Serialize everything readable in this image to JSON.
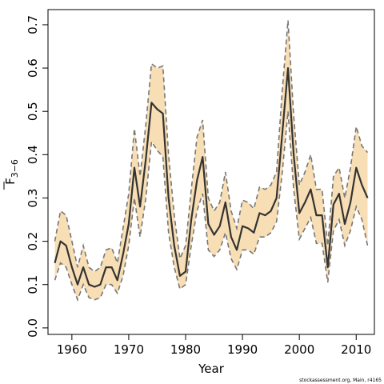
{
  "chart_data": {
    "type": "line",
    "xlabel": "Year",
    "ylabel": "F",
    "ylabel_subscript": "3−6",
    "xlim": [
      1955.8,
      2013.2
    ],
    "ylim": [
      -0.015,
      0.735
    ],
    "x_ticks": [
      1960,
      1970,
      1980,
      1990,
      2000,
      2010
    ],
    "y_ticks": [
      0.0,
      0.1,
      0.2,
      0.3,
      0.4,
      0.5,
      0.6,
      0.7
    ],
    "colors": {
      "band": "#f8deb4",
      "bounds": "#777777",
      "estimate": "#333333",
      "axes": "#000000"
    },
    "credit": "stockassessment.org, Main, r4165",
    "series": [
      {
        "role": "estimate",
        "x": [
          1957,
          1958,
          1959,
          1960,
          1961,
          1962,
          1963,
          1964,
          1965,
          1966,
          1967,
          1968,
          1969,
          1970,
          1971,
          1972,
          1973,
          1974,
          1975,
          1976,
          1977,
          1978,
          1979,
          1980,
          1981,
          1982,
          1983,
          1984,
          1985,
          1986,
          1987,
          1988,
          1989,
          1990,
          1991,
          1992,
          1993,
          1994,
          1995,
          1996,
          1997,
          1998,
          1999,
          2000,
          2001,
          2002,
          2003,
          2004,
          2005,
          2006,
          2007,
          2008,
          2009,
          2010,
          2011,
          2012
        ],
        "y": [
          0.15,
          0.2,
          0.19,
          0.14,
          0.1,
          0.14,
          0.1,
          0.095,
          0.1,
          0.14,
          0.14,
          0.11,
          0.17,
          0.24,
          0.37,
          0.28,
          0.39,
          0.52,
          0.505,
          0.495,
          0.3,
          0.19,
          0.12,
          0.13,
          0.25,
          0.34,
          0.395,
          0.24,
          0.215,
          0.235,
          0.29,
          0.21,
          0.18,
          0.235,
          0.23,
          0.22,
          0.265,
          0.26,
          0.27,
          0.3,
          0.45,
          0.6,
          0.4,
          0.265,
          0.29,
          0.32,
          0.26,
          0.26,
          0.14,
          0.285,
          0.31,
          0.24,
          0.29,
          0.37,
          0.33,
          0.3
        ]
      },
      {
        "role": "upper",
        "x": [
          1957,
          1958,
          1959,
          1960,
          1961,
          1962,
          1963,
          1964,
          1965,
          1966,
          1967,
          1968,
          1969,
          1970,
          1971,
          1972,
          1973,
          1974,
          1975,
          1976,
          1977,
          1978,
          1979,
          1980,
          1981,
          1982,
          1983,
          1984,
          1985,
          1986,
          1987,
          1988,
          1989,
          1990,
          1991,
          1992,
          1993,
          1994,
          1995,
          1996,
          1997,
          1998,
          1999,
          2000,
          2001,
          2002,
          2003,
          2004,
          2005,
          2006,
          2007,
          2008,
          2009,
          2010,
          2011,
          2012
        ],
        "y": [
          0.2,
          0.27,
          0.26,
          0.2,
          0.14,
          0.19,
          0.14,
          0.13,
          0.14,
          0.18,
          0.185,
          0.15,
          0.23,
          0.31,
          0.46,
          0.35,
          0.47,
          0.61,
          0.6,
          0.605,
          0.4,
          0.26,
          0.16,
          0.19,
          0.32,
          0.44,
          0.48,
          0.3,
          0.27,
          0.29,
          0.36,
          0.27,
          0.23,
          0.295,
          0.29,
          0.275,
          0.325,
          0.32,
          0.33,
          0.36,
          0.55,
          0.71,
          0.49,
          0.33,
          0.36,
          0.4,
          0.32,
          0.32,
          0.19,
          0.35,
          0.37,
          0.3,
          0.37,
          0.465,
          0.42,
          0.405
        ]
      },
      {
        "role": "lower",
        "x": [
          1957,
          1958,
          1959,
          1960,
          1961,
          1962,
          1963,
          1964,
          1965,
          1966,
          1967,
          1968,
          1969,
          1970,
          1971,
          1972,
          1973,
          1974,
          1975,
          1976,
          1977,
          1978,
          1979,
          1980,
          1981,
          1982,
          1983,
          1984,
          1985,
          1986,
          1987,
          1988,
          1989,
          1990,
          1991,
          1992,
          1993,
          1994,
          1995,
          1996,
          1997,
          1998,
          1999,
          2000,
          2001,
          2002,
          2003,
          2004,
          2005,
          2006,
          2007,
          2008,
          2009,
          2010,
          2011,
          2012
        ],
        "y": [
          0.11,
          0.15,
          0.14,
          0.1,
          0.065,
          0.1,
          0.07,
          0.065,
          0.07,
          0.1,
          0.1,
          0.08,
          0.12,
          0.19,
          0.3,
          0.21,
          0.3,
          0.43,
          0.41,
          0.395,
          0.22,
          0.14,
          0.09,
          0.1,
          0.19,
          0.27,
          0.31,
          0.18,
          0.165,
          0.18,
          0.22,
          0.16,
          0.135,
          0.18,
          0.18,
          0.17,
          0.21,
          0.21,
          0.22,
          0.245,
          0.36,
          0.5,
          0.32,
          0.205,
          0.23,
          0.255,
          0.195,
          0.195,
          0.105,
          0.225,
          0.25,
          0.19,
          0.225,
          0.28,
          0.25,
          0.19
        ]
      }
    ]
  }
}
